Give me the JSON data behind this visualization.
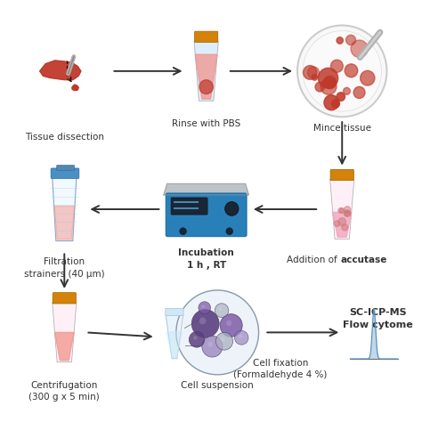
{
  "background_color": "#ffffff",
  "icon_colors": {
    "liver_dark": "#b03a2e",
    "liver_mid": "#c0392b",
    "liver_light": "#cd6155",
    "tube_cap_orange": "#d4820a",
    "tube_cap_orange2": "#e67e22",
    "tube_body_clear": "#ddeeff",
    "tube_body_white": "#f0f8ff",
    "tube_liquid_pink": "#f1948a",
    "tube_liquid_pink2": "#e8a0a0",
    "tube_cap_blue": "#5dade2",
    "petri_bg": "#f5f5f5",
    "petri_edge": "#cccccc",
    "tissue_red": "#c0392b",
    "scale_blue_dark": "#1a6ea8",
    "scale_blue": "#2980b9",
    "scale_blue_light": "#3498db",
    "scale_gray": "#bdc3c7",
    "scale_gray_dark": "#95a5a6",
    "cell_purple_dark": "#5b4080",
    "cell_purple_mid": "#7d5ba6",
    "cell_purple_light": "#9b87bf",
    "cell_gray": "#aab0c0",
    "cell_outline": "#4a3a60",
    "arrow_color": "#333333",
    "filter_tube_blue_cap": "#4a90c4",
    "spatula_color": "#b0b0b0",
    "flow_peak": "#a8c8e8",
    "flow_line": "#6090b8"
  },
  "layout": {
    "fig_w": 4.74,
    "fig_h": 4.74,
    "dpi": 100
  },
  "labels": {
    "tissue_dissection": "Tissue dissection",
    "rinse_pbs": "Rinse with PBS",
    "mince_tissue": "Mince tissue",
    "addition_accutase_pre": "Addition of ",
    "addition_accutase_bold": "accutase",
    "incubation": "Incubation\n1 h , RT",
    "filtration": "Filtration\nstrainers (40 μm)",
    "centrifugation": "Centrifugation\n(300 g x 5 min)",
    "cell_suspension": "Cell suspension",
    "cell_fixation": "Cell fixation\n(Formaldehyde 4 %)",
    "sc_icp": "SC-ICP-MS",
    "flow_cyto": "Flow cytome"
  },
  "font_size": 7.5
}
